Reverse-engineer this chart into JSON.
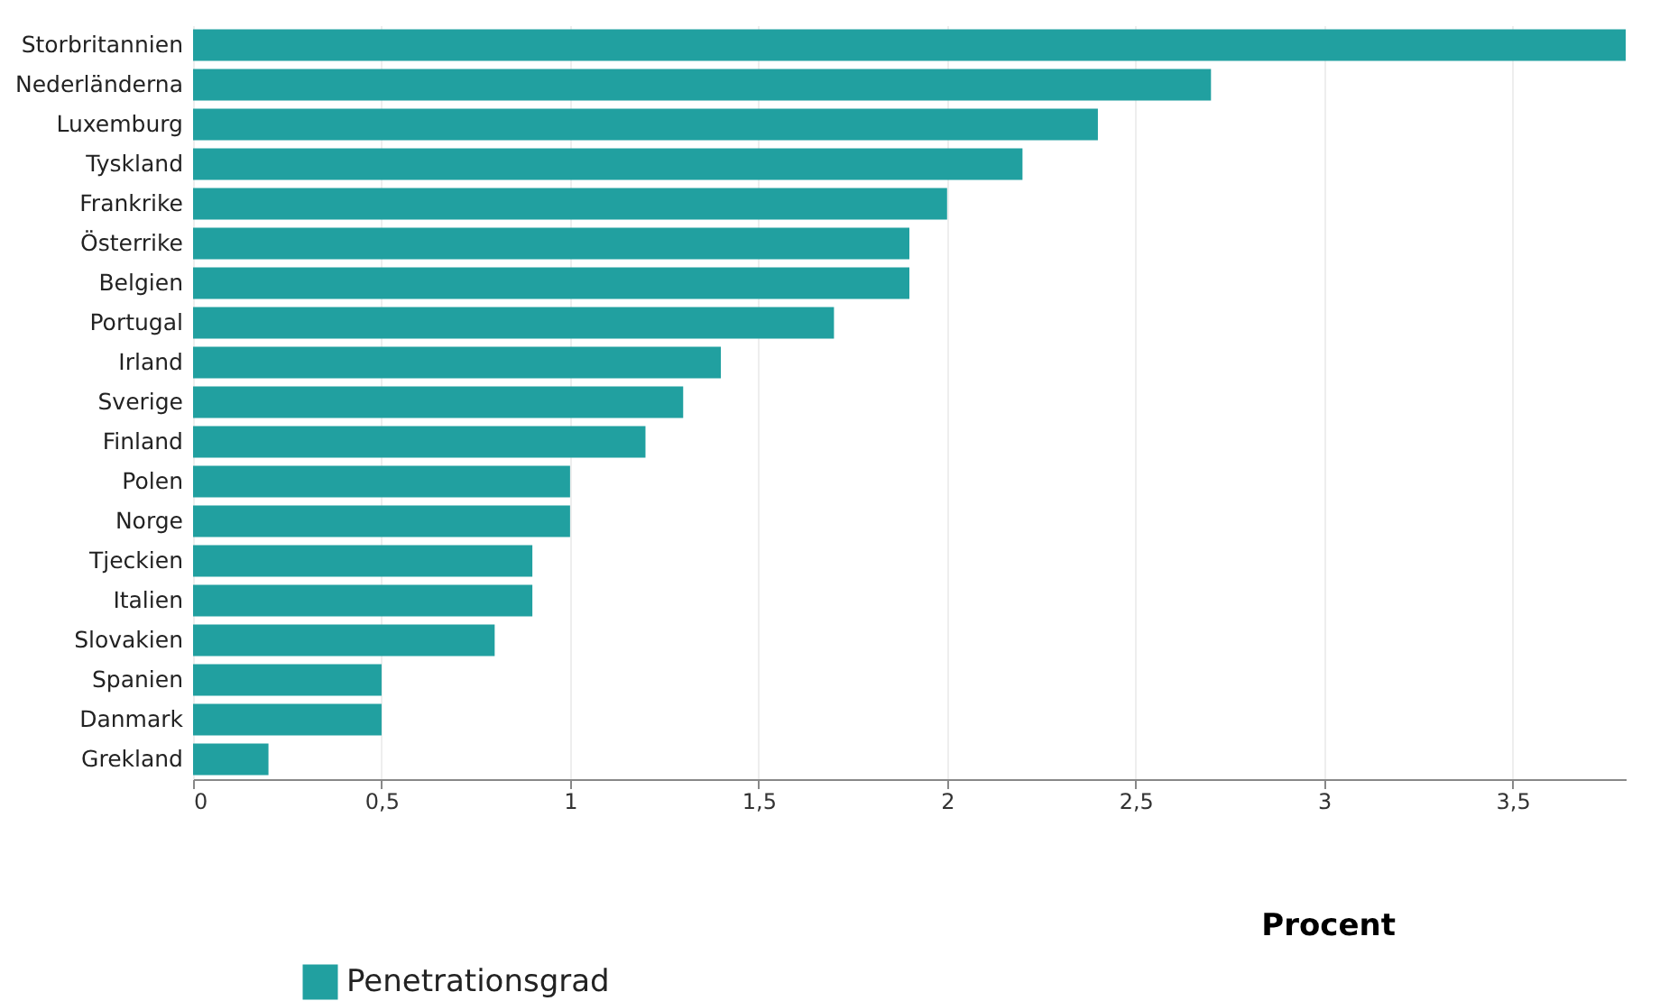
{
  "chart_data": {
    "type": "bar",
    "orientation": "horizontal",
    "xlabel": "Procent",
    "categories": [
      "Storbritannien",
      "Nederländerna",
      "Luxemburg",
      "Tyskland",
      "Frankrike",
      "Österrike",
      "Belgien",
      "Portugal",
      "Irland",
      "Sverige",
      "Finland",
      "Polen",
      "Norge",
      "Tjeckien",
      "Italien",
      "Slovakien",
      "Spanien",
      "Danmark",
      "Grekland"
    ],
    "series": [
      {
        "name": "Penetrationsgrad",
        "color": "#21a0a0",
        "values": [
          3.8,
          2.7,
          2.4,
          2.2,
          2.0,
          1.9,
          1.9,
          1.7,
          1.4,
          1.3,
          1.2,
          1.0,
          1.0,
          0.9,
          0.9,
          0.8,
          0.5,
          0.5,
          0.2
        ]
      }
    ],
    "xlim": [
      0,
      3.8
    ],
    "xticks": [
      0,
      {
        "value": 0.5,
        "label": "0,5"
      },
      1,
      {
        "value": 1.5,
        "label": "1,5"
      },
      2,
      {
        "value": 2.5,
        "label": "2,5"
      },
      3,
      {
        "value": 3.5,
        "label": "3,5"
      }
    ],
    "grid": "x",
    "legend": "bottom left"
  }
}
